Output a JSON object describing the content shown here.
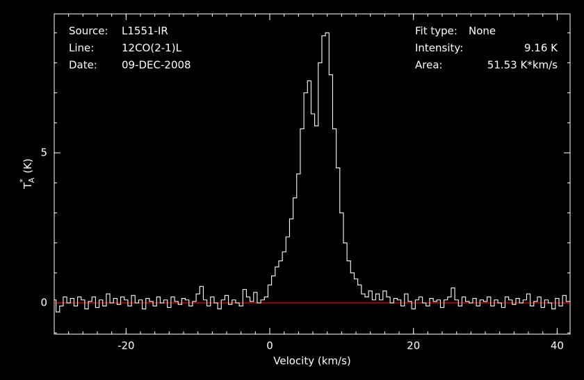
{
  "chart_data": {
    "type": "step",
    "xlabel": "Velocity (km/s)",
    "ylabel": {
      "symbol": "T",
      "sup": "*",
      "sub": "A",
      "unit": "(K)"
    },
    "annotations_left": [
      {
        "label": "Source:",
        "value": "L1551-IR"
      },
      {
        "label": "Line:",
        "value": "12CO(2-1)L"
      },
      {
        "label": "Date:",
        "value": "09-DEC-2008"
      }
    ],
    "annotations_right": [
      {
        "label": "Fit type:",
        "value": "None"
      },
      {
        "label": "Intensity:",
        "value": "9.16 K"
      },
      {
        "label": "Area:",
        "value": "51.53 K*km/s"
      }
    ],
    "xlim": [
      -30,
      41.8
    ],
    "ylim": [
      -1.04,
      9.63
    ],
    "xticks": [
      -20,
      0,
      20,
      40
    ],
    "yticks": [
      0,
      5
    ],
    "baseline": 0,
    "baseline_color": "#ff0000",
    "color": "#ffffff",
    "x": [
      -30,
      -29.5,
      -29,
      -28.5,
      -28,
      -27.5,
      -27,
      -26.5,
      -26,
      -25.5,
      -25,
      -24.5,
      -24,
      -23.5,
      -23,
      -22.5,
      -22,
      -21.5,
      -21,
      -20.5,
      -20,
      -19.5,
      -19,
      -18.5,
      -18,
      -17.5,
      -17,
      -16.5,
      -16,
      -15.5,
      -15,
      -14.5,
      -14,
      -13.5,
      -13,
      -12.5,
      -12,
      -11.5,
      -11,
      -10.5,
      -10,
      -9.5,
      -9,
      -8.5,
      -8,
      -7.5,
      -7,
      -6.5,
      -6,
      -5.5,
      -5,
      -4.5,
      -4,
      -3.5,
      -3,
      -2.5,
      -2,
      -1.5,
      -1,
      -0.5,
      0,
      0.5,
      1,
      1.5,
      2,
      2.5,
      3,
      3.5,
      4,
      4.5,
      5,
      5.5,
      6,
      6.5,
      7,
      7.5,
      8,
      8.5,
      9,
      9.5,
      10,
      10.5,
      11,
      11.5,
      12,
      12.5,
      13,
      13.5,
      14,
      14.5,
      15,
      15.5,
      16,
      16.5,
      17,
      17.5,
      18,
      18.5,
      19,
      19.5,
      20,
      20.5,
      21,
      21.5,
      22,
      22.5,
      23,
      23.5,
      24,
      24.5,
      25,
      25.5,
      26,
      26.5,
      27,
      27.5,
      28,
      28.5,
      29,
      29.5,
      30,
      30.5,
      31,
      31.5,
      32,
      32.5,
      33,
      33.5,
      34,
      34.5,
      35,
      35.5,
      36,
      36.5,
      37,
      37.5,
      38,
      38.5,
      39,
      39.5,
      40,
      40.5,
      41,
      41.5
    ],
    "values": [
      0.1,
      -0.3,
      -0.1,
      0.2,
      0.0,
      0.15,
      -0.1,
      0.2,
      0.1,
      -0.2,
      0.05,
      0.2,
      -0.15,
      0.1,
      -0.1,
      0.3,
      0.0,
      0.15,
      -0.05,
      0.2,
      0.1,
      -0.1,
      0.25,
      0.0,
      0.1,
      -0.2,
      0.15,
      0.05,
      -0.1,
      0.2,
      0.0,
      0.1,
      -0.15,
      0.2,
      0.05,
      -0.05,
      0.15,
      0.1,
      -0.1,
      0.05,
      0.3,
      0.55,
      0.1,
      -0.1,
      0.2,
      0.0,
      -0.2,
      0.1,
      0.25,
      -0.05,
      0.1,
      0.0,
      -0.1,
      0.45,
      0.2,
      0.05,
      0.35,
      0.0,
      0.1,
      0.2,
      0.6,
      0.9,
      1.2,
      1.4,
      1.7,
      2.2,
      2.8,
      3.5,
      4.3,
      5.8,
      7.0,
      7.4,
      6.3,
      5.9,
      8.0,
      8.9,
      9.0,
      7.6,
      5.8,
      4.5,
      3.0,
      2.0,
      1.4,
      1.0,
      0.8,
      0.6,
      0.3,
      0.2,
      0.4,
      0.1,
      0.3,
      0.1,
      0.4,
      0.2,
      0.0,
      0.15,
      0.1,
      -0.1,
      0.3,
      0.05,
      -0.2,
      0.1,
      0.2,
      0.0,
      -0.1,
      0.15,
      0.05,
      0.1,
      -0.15,
      0.1,
      0.2,
      0.5,
      0.1,
      -0.1,
      0.2,
      0.05,
      0.0,
      0.15,
      -0.1,
      0.1,
      0.05,
      0.2,
      -0.1,
      0.1,
      0.0,
      -0.15,
      0.2,
      0.1,
      -0.05,
      0.15,
      0.0,
      0.1,
      0.3,
      -0.1,
      0.05,
      0.2,
      -0.15,
      0.1,
      0.0,
      -0.2,
      0.15,
      -0.1,
      0.25,
      0.05
    ]
  }
}
